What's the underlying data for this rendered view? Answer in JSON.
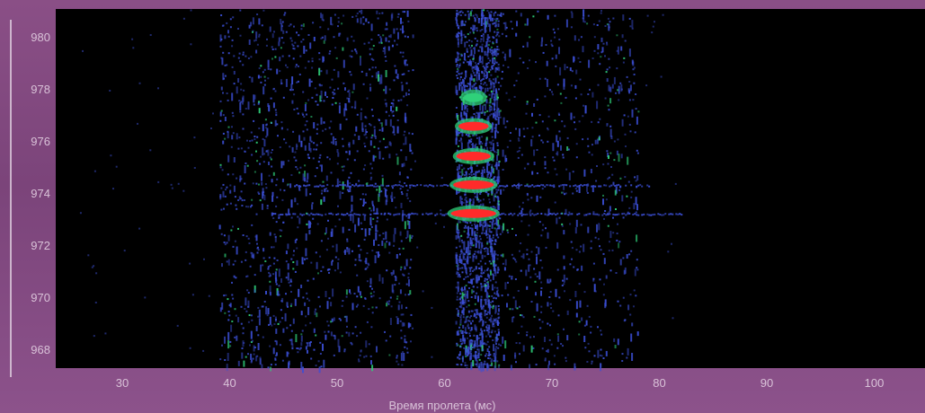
{
  "chart_data": {
    "type": "heatmap",
    "title": "",
    "xlabel": "Время пролета (мс)",
    "ylabel": "",
    "xlim": [
      24,
      104
    ],
    "ylim": [
      967.3,
      981.1
    ],
    "x_ticks": [
      "30",
      "40",
      "50",
      "60",
      "70",
      "80",
      "90",
      "100"
    ],
    "y_ticks": [
      "968",
      "970",
      "972",
      "974",
      "976",
      "978",
      "980"
    ],
    "grid": false,
    "legend": "none",
    "colors": {
      "background": "#000000",
      "low": "#3b4fd6",
      "mid": "#2fd07a",
      "high": "#ff2a2a",
      "frame": "#8a4f86"
    },
    "intensity_bands": [
      {
        "x_center": 62.7,
        "x_halfwidth": 2.1,
        "y": 973.25,
        "level": "high"
      },
      {
        "x_center": 62.7,
        "x_halfwidth": 1.9,
        "y": 974.35,
        "level": "high"
      },
      {
        "x_center": 62.7,
        "x_halfwidth": 1.6,
        "y": 975.45,
        "level": "high"
      },
      {
        "x_center": 62.7,
        "x_halfwidth": 1.4,
        "y": 976.6,
        "level": "high"
      },
      {
        "x_center": 62.7,
        "x_halfwidth": 0.9,
        "y": 977.7,
        "level": "mid"
      }
    ],
    "streaks": [
      {
        "y": 973.25,
        "x_from": 44,
        "x_to": 82
      },
      {
        "y": 974.35,
        "x_from": 46,
        "x_to": 79
      }
    ],
    "scatter_regions": [
      {
        "x_from": 39,
        "x_to": 57,
        "density": "high"
      },
      {
        "x_from": 61,
        "x_to": 65,
        "density": "very-high"
      },
      {
        "x_from": 65,
        "x_to": 78,
        "density": "medium"
      }
    ]
  }
}
